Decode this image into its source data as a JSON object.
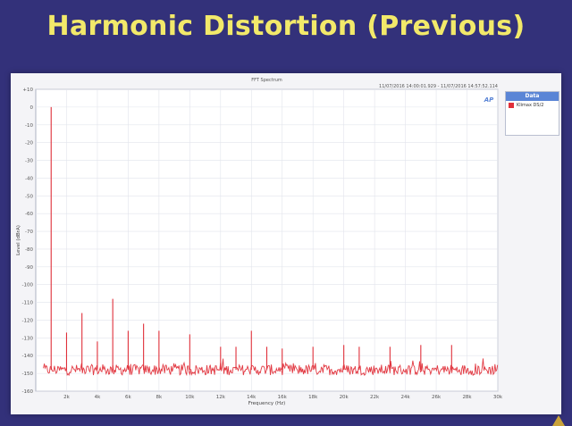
{
  "slide": {
    "title": "Harmonic Distortion (Previous)"
  },
  "chart_data": {
    "type": "line",
    "title": "FFT Spectrum",
    "timestamp": "11/07/2016 14:00:01.929 - 11/07/2016 14:57:52.114",
    "logo": "AP",
    "xlabel": "Frequency (Hz)",
    "ylabel": "Level (dBrA)",
    "xlim": [
      0,
      30000
    ],
    "ylim": [
      -160,
      10
    ],
    "x_ticks": [
      {
        "v": 2000,
        "label": "2k"
      },
      {
        "v": 4000,
        "label": "4k"
      },
      {
        "v": 6000,
        "label": "6k"
      },
      {
        "v": 8000,
        "label": "8k"
      },
      {
        "v": 10000,
        "label": "10k"
      },
      {
        "v": 12000,
        "label": "12k"
      },
      {
        "v": 14000,
        "label": "14k"
      },
      {
        "v": 16000,
        "label": "16k"
      },
      {
        "v": 18000,
        "label": "18k"
      },
      {
        "v": 20000,
        "label": "20k"
      },
      {
        "v": 22000,
        "label": "22k"
      },
      {
        "v": 24000,
        "label": "24k"
      },
      {
        "v": 26000,
        "label": "26k"
      },
      {
        "v": 28000,
        "label": "28k"
      },
      {
        "v": 30000,
        "label": "30k"
      }
    ],
    "y_ticks": [
      {
        "v": 10,
        "label": "+10"
      },
      {
        "v": 0,
        "label": "0"
      },
      {
        "v": -10,
        "label": "-10"
      },
      {
        "v": -20,
        "label": "-20"
      },
      {
        "v": -30,
        "label": "-30"
      },
      {
        "v": -40,
        "label": "-40"
      },
      {
        "v": -50,
        "label": "-50"
      },
      {
        "v": -60,
        "label": "-60"
      },
      {
        "v": -70,
        "label": "-70"
      },
      {
        "v": -80,
        "label": "-80"
      },
      {
        "v": -90,
        "label": "-90"
      },
      {
        "v": -100,
        "label": "-100"
      },
      {
        "v": -110,
        "label": "-110"
      },
      {
        "v": -120,
        "label": "-120"
      },
      {
        "v": -130,
        "label": "-130"
      },
      {
        "v": -140,
        "label": "-140"
      },
      {
        "v": -150,
        "label": "-150"
      },
      {
        "v": -160,
        "label": "-160"
      }
    ],
    "grid": true,
    "legend": {
      "header": "Data",
      "placement": "right"
    },
    "series": [
      {
        "name": "Klimax DS/2",
        "color": "#e0303a",
        "noise_floor": -148,
        "peaks": [
          {
            "x": 1000,
            "y": 0
          },
          {
            "x": 2000,
            "y": -127
          },
          {
            "x": 3000,
            "y": -116
          },
          {
            "x": 4000,
            "y": -132
          },
          {
            "x": 5000,
            "y": -108
          },
          {
            "x": 6000,
            "y": -126
          },
          {
            "x": 7000,
            "y": -122
          },
          {
            "x": 8000,
            "y": -126
          },
          {
            "x": 10000,
            "y": -128
          },
          {
            "x": 12000,
            "y": -135
          },
          {
            "x": 13000,
            "y": -135
          },
          {
            "x": 14000,
            "y": -126
          },
          {
            "x": 15000,
            "y": -135
          },
          {
            "x": 16000,
            "y": -136
          },
          {
            "x": 18000,
            "y": -135
          },
          {
            "x": 20000,
            "y": -134
          },
          {
            "x": 21000,
            "y": -135
          },
          {
            "x": 23000,
            "y": -135
          },
          {
            "x": 25000,
            "y": -134
          },
          {
            "x": 27000,
            "y": -134
          }
        ]
      }
    ]
  }
}
